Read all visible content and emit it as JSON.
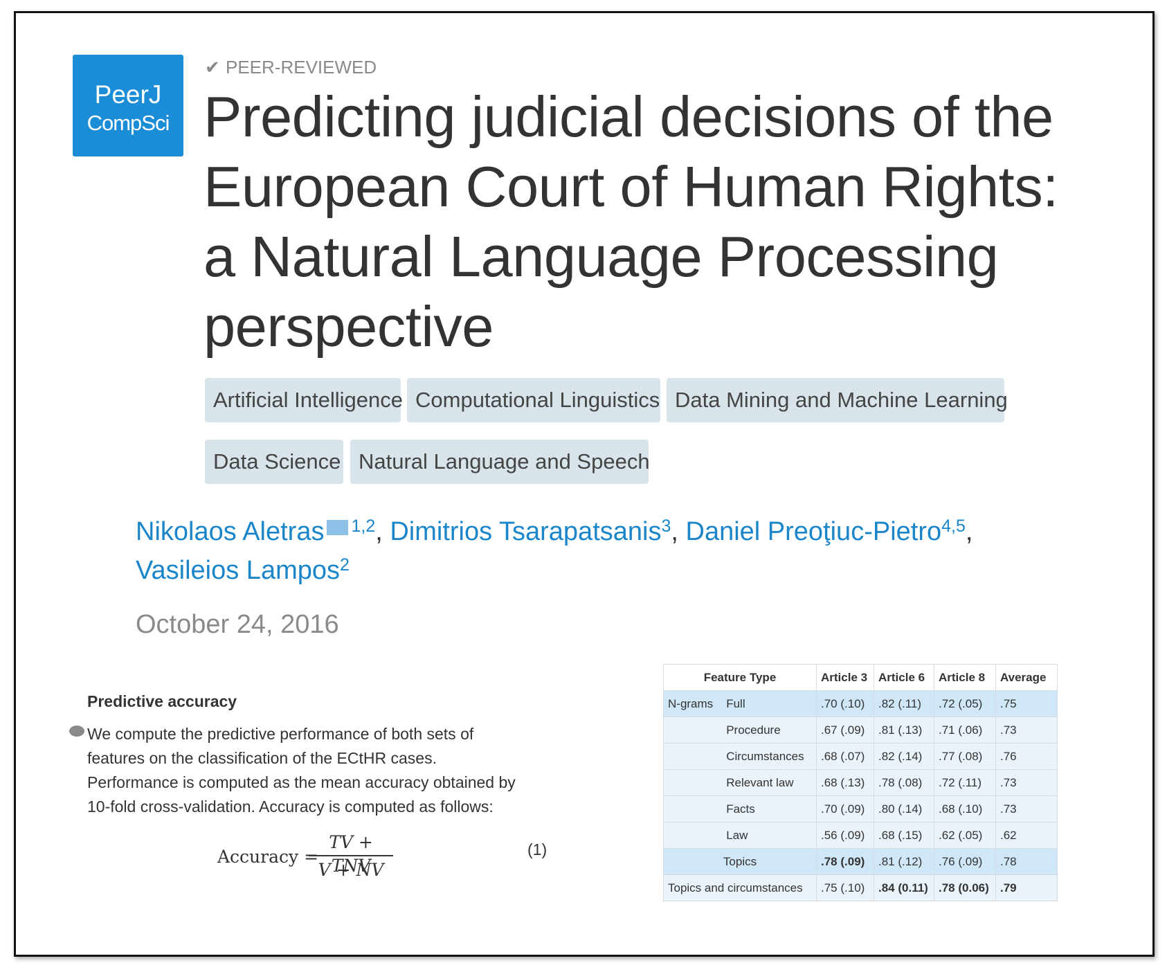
{
  "badge": {
    "label": "PEER-REVIEWED"
  },
  "logo": {
    "line1": "PeerJ",
    "line2": "CompSci"
  },
  "title_lines": [
    "Predicting judicial decisions of the",
    "European Court of Human Rights:",
    "a Natural Language Processing",
    "perspective"
  ],
  "tags": [
    "Artificial Intelligence",
    "Computational Linguistics",
    "Data Mining and Machine Learning",
    "Data Science",
    "Natural Language and Speech"
  ],
  "authors": [
    {
      "name": "Nikolaos Aletras",
      "sup": "1,2"
    },
    {
      "name": "Dimitrios Tsarapatsanis",
      "sup": "3"
    },
    {
      "name": "Daniel Preoţiuc-Pietro",
      "sup": "4,5"
    },
    {
      "name": "Vasileios Lampos",
      "sup": "2"
    }
  ],
  "date": "October 24, 2016",
  "section": {
    "heading": "Predictive accuracy",
    "lines": [
      "We compute the predictive performance of both sets of",
      "features on the classification of the ECtHR cases.",
      "Performance is computed as the mean accuracy obtained by",
      "10-fold cross-validation. Accuracy is computed as follows:"
    ]
  },
  "equation": {
    "lhs": "Accuracy =",
    "numerator": "TV + TNV",
    "denominator": "V + NV",
    "number": "(1)"
  },
  "table": {
    "headers": [
      "Feature Type",
      "Article 3",
      "Article 6",
      "Article 8",
      "Average"
    ],
    "rows": [
      {
        "group": "N-grams",
        "feature": "Full",
        "a3": ".70 (.10)",
        "a6": ".82 (.11)",
        "a8": ".72 (.05)",
        "avg": ".75"
      },
      {
        "group": "",
        "feature": "Procedure",
        "a3": ".67 (.09)",
        "a6": ".81 (.13)",
        "a8": ".71 (.06)",
        "avg": ".73"
      },
      {
        "group": "",
        "feature": "Circumstances",
        "a3": ".68 (.07)",
        "a6": ".82 (.14)",
        "a8": ".77 (.08)",
        "avg": ".76"
      },
      {
        "group": "",
        "feature": "Relevant law",
        "a3": ".68 (.13)",
        "a6": ".78 (.08)",
        "a8": ".72 (.11)",
        "avg": ".73"
      },
      {
        "group": "",
        "feature": "Facts",
        "a3": ".70 (.09)",
        "a6": ".80 (.14)",
        "a8": ".68 (.10)",
        "avg": ".73"
      },
      {
        "group": "",
        "feature": "Law",
        "a3": ".56 (.09)",
        "a6": ".68 (.15)",
        "a8": ".62 (.05)",
        "avg": ".62"
      },
      {
        "group": "",
        "feature": "Topics",
        "a3": ".78 (.09)",
        "a6": ".81 (.12)",
        "a8": ".76 (.09)",
        "avg": ".78"
      },
      {
        "group": "",
        "feature": "Topics and circumstances",
        "a3": ".75 (.10)",
        "a6": ".84 (0.11)",
        "a8": ".78 (0.06)",
        "avg": ".79"
      }
    ]
  }
}
